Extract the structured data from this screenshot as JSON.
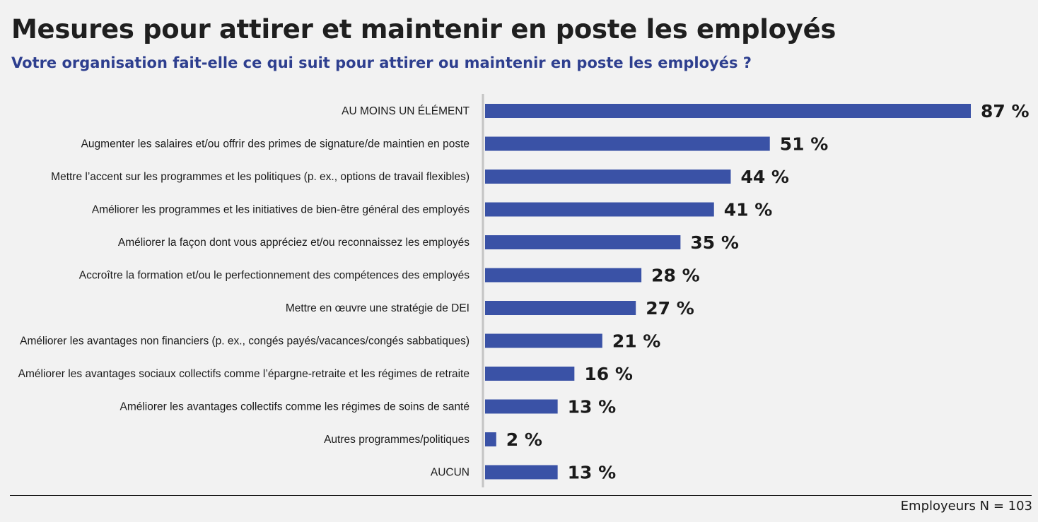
{
  "header": {
    "title": "Mesures pour attirer et maintenir en poste les employés",
    "subtitle": "Votre organisation fait-elle ce qui suit pour attirer ou maintenir en poste les employés ?"
  },
  "footer": {
    "note": "Employeurs N = 103"
  },
  "colors": {
    "bar": "#3a52a6",
    "title": "#1f1f1f",
    "subtitle": "#2e3f8f",
    "axis": "#c4c4c4",
    "background": "#f2f2f2"
  },
  "chart_data": {
    "type": "bar",
    "orientation": "horizontal",
    "categories": [
      "AU MOINS UN ÉLÉMENT",
      "Augmenter les salaires et/ou offrir des primes de signature/de maintien en poste",
      "Mettre l’accent sur les programmes et les politiques (p. ex., options de travail flexibles)",
      "Améliorer les programmes et les initiatives de bien-être général des employés",
      "Améliorer la façon dont vous appréciez et/ou reconnaissez les employés",
      "Accroître la formation et/ou le perfectionnement des compétences des employés",
      "Mettre en œuvre une stratégie de DEI",
      "Améliorer les avantages non financiers (p. ex., congés payés/vacances/congés sabbatiques)",
      "Améliorer les avantages sociaux collectifs comme l’épargne-retraite et les régimes de retraite",
      "Améliorer les avantages collectifs comme les régimes de soins de santé",
      "Autres programmes/politiques",
      "AUCUN"
    ],
    "values": [
      87,
      51,
      44,
      41,
      35,
      28,
      27,
      21,
      16,
      13,
      2,
      13
    ],
    "value_labels": [
      "87 %",
      "51 %",
      "44 %",
      "41 %",
      "35 %",
      "28 %",
      "27 %",
      "21 %",
      "16 %",
      "13 %",
      "2 %",
      "13 %"
    ],
    "xlim": [
      0,
      87
    ],
    "grid": false,
    "legend": "none"
  }
}
